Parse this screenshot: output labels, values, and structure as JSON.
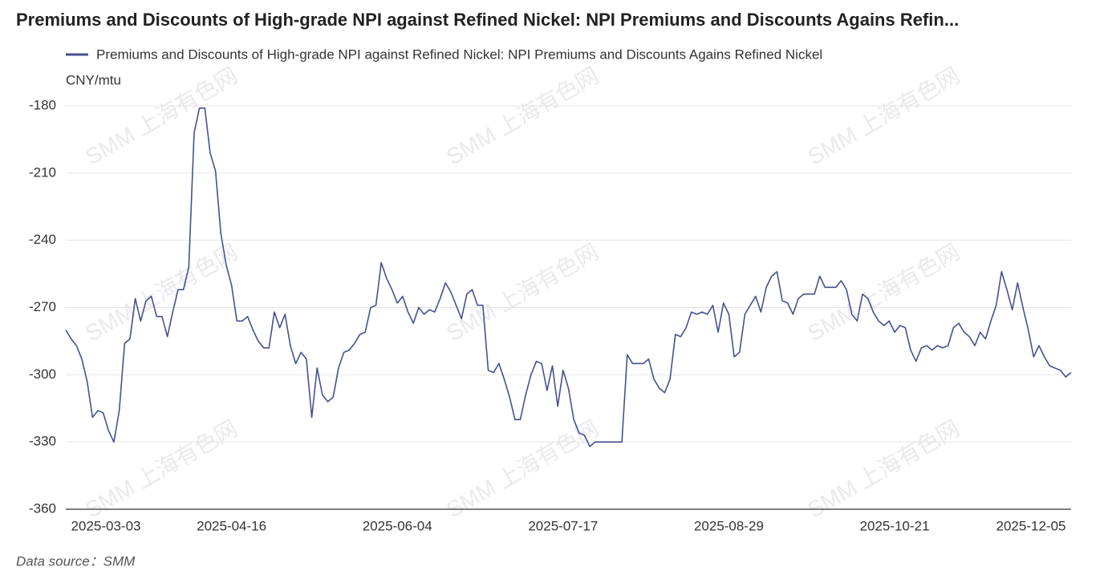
{
  "chart_data": {
    "type": "line",
    "title": "Premiums and Discounts of High-grade NPI against Refined Nickel: NPI Premiums and Discounts Agains Refin...",
    "y_label": "CNY/mtu",
    "source": "Data source：SMM",
    "watermark": "SMM 上海有色网",
    "x": [
      "2025-03-03",
      null,
      null,
      null,
      null,
      null,
      null,
      null,
      null,
      null,
      null,
      null,
      null,
      null,
      null,
      null,
      null,
      null,
      null,
      null,
      null,
      null,
      null,
      null,
      null,
      null,
      null,
      null,
      null,
      null,
      null,
      "2025-04-16",
      null,
      null,
      null,
      null,
      null,
      null,
      null,
      null,
      null,
      null,
      null,
      null,
      null,
      null,
      null,
      null,
      null,
      null,
      null,
      null,
      null,
      null,
      null,
      null,
      null,
      null,
      null,
      null,
      null,
      null,
      "2025-06-04",
      null,
      null,
      null,
      null,
      null,
      null,
      null,
      null,
      null,
      null,
      null,
      null,
      null,
      null,
      null,
      null,
      null,
      null,
      null,
      null,
      null,
      null,
      null,
      null,
      null,
      null,
      null,
      null,
      null,
      null,
      "2025-07-17",
      null,
      null,
      null,
      null,
      null,
      null,
      null,
      null,
      null,
      null,
      null,
      null,
      null,
      null,
      null,
      null,
      null,
      null,
      null,
      null,
      null,
      null,
      null,
      null,
      null,
      null,
      null,
      null,
      null,
      null,
      "2025-08-29",
      null,
      null,
      null,
      null,
      null,
      null,
      null,
      null,
      null,
      null,
      null,
      null,
      null,
      null,
      null,
      null,
      null,
      null,
      null,
      null,
      null,
      null,
      null,
      null,
      null,
      null,
      null,
      null,
      null,
      null,
      "2025-10-21",
      null,
      null,
      null,
      null,
      null,
      null,
      null,
      null,
      null,
      null,
      null,
      null,
      null,
      null,
      null,
      null,
      null,
      null,
      null,
      null,
      null,
      null,
      null,
      null,
      null,
      null,
      null,
      null,
      null,
      null,
      "2025-12-05",
      null,
      null
    ],
    "series": [
      {
        "name": "Premiums and Discounts of High-grade NPI against Refined Nickel: NPI Premiums and Discounts Agains Refined Nickel",
        "color": "#46518f",
        "values": [
          -280,
          -284,
          -287,
          -293,
          -303,
          -319,
          -316,
          -317,
          -325,
          -330,
          -316,
          -286,
          -284,
          -266,
          -276,
          -267,
          -265,
          -274,
          -274,
          -283,
          -272,
          -262,
          -262,
          -252,
          -192,
          -181,
          -181,
          -201,
          -209,
          -237,
          -251,
          -260,
          -276,
          -276,
          -274,
          -280,
          -285,
          -288,
          -288,
          -272,
          -279,
          -273,
          -287,
          -295,
          -290,
          -293,
          -319,
          -297,
          -309,
          -312,
          -310,
          -297,
          -290,
          -289,
          -286,
          -282,
          -281,
          -270,
          -269,
          -250,
          -257,
          -262,
          -268,
          -265,
          -272,
          -277,
          -270,
          -273,
          -271,
          -272,
          -266,
          -259,
          -263,
          -269,
          -275,
          -264,
          -262,
          -269,
          -269,
          -298,
          -299,
          -295,
          -302,
          -310,
          -320,
          -320,
          -309,
          -300,
          -294,
          -295,
          -307,
          -296,
          -314,
          -298,
          -306,
          -320,
          -326,
          -327,
          -332,
          -330,
          -330,
          -330,
          -330,
          -330,
          -330,
          -291,
          -295,
          -295,
          -295,
          -293,
          -302,
          -306,
          -308,
          -302,
          -282,
          -283,
          -279,
          -272,
          -273,
          -272,
          -273,
          -269,
          -281,
          -268,
          -273,
          -292,
          -290,
          -273,
          -269,
          -265,
          -272,
          -261,
          -256,
          -254,
          -267,
          -268,
          -273,
          -266,
          -264,
          -264,
          -264,
          -256,
          -261,
          -261,
          -261,
          -258,
          -262,
          -273,
          -276,
          -264,
          -266,
          -272,
          -276,
          -278,
          -276,
          -281,
          -278,
          -279,
          -289,
          -294,
          -288,
          -287,
          -289,
          -287,
          -288,
          -287,
          -279,
          -277,
          -281,
          -283,
          -287,
          -281,
          -284,
          -276,
          -269,
          -254,
          -262,
          -271,
          -259,
          -270,
          -280,
          -292,
          -287,
          -292,
          -296,
          -297,
          -298,
          -301,
          -299
        ]
      }
    ],
    "ylim": [
      -360,
      -180
    ],
    "yticks": [
      -360,
      -330,
      -300,
      -270,
      -240,
      -210,
      -180
    ],
    "grid": true
  }
}
